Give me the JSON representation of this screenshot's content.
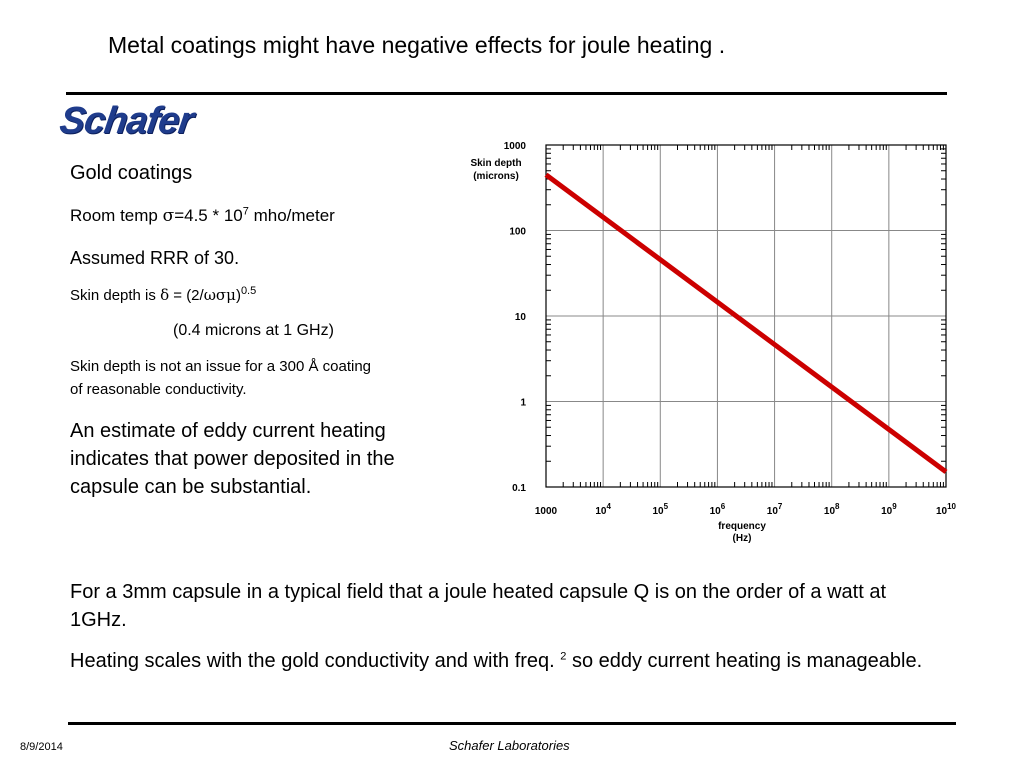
{
  "slide": {
    "title": "Metal coatings might have negative effects for joule heating .",
    "logo_text": "Schafer"
  },
  "bullets": {
    "gold": "Gold coatings",
    "room_temp_prefix": "Room temp ",
    "sigma": "σ",
    "room_temp_eq": "=4.5 * 10",
    "room_temp_exp": "7",
    "room_temp_unit": " mho/meter",
    "rrr": "Assumed RRR of 30.",
    "skin_prefix": "Skin depth is ",
    "delta": "δ",
    "skin_eq": " = (2/",
    "omega_sigma_mu": "ωσμ",
    "skin_close": ")",
    "skin_exp": "0.5",
    "microns": "(0.4 microns at 1 GHz)",
    "issue_line1": "Skin depth is not an issue for a 300 Å coating",
    "issue_line2": "of reasonable conductivity.",
    "eddy_line1": "An estimate of eddy current heating",
    "eddy_line2": "indicates that power deposited in the",
    "eddy_line3": "capsule can be substantial."
  },
  "bottom": {
    "para1": "For a 3mm capsule in a typical field that a joule heated capsule Q is on the order of a watt at 1GHz.",
    "para2_before": "Heating scales with the gold  conductivity and with freq. ",
    "para2_sup": "2",
    "para2_after": " so eddy current heating is manageable."
  },
  "footer": {
    "date": "8/9/2014",
    "center": "Schafer Laboratories"
  },
  "chart_data": {
    "type": "line",
    "xscale": "log",
    "yscale": "log",
    "xlim": [
      1000,
      10000000000
    ],
    "ylim": [
      0.1,
      1000
    ],
    "xlabel": "frequency\n(Hz)",
    "ylabel": "Skin depth\n(microns)",
    "grid": true,
    "x_ticks": [
      {
        "value": 1000,
        "base": "1000",
        "exp": ""
      },
      {
        "value": 10000,
        "base": "10",
        "exp": "4"
      },
      {
        "value": 100000,
        "base": "10",
        "exp": "5"
      },
      {
        "value": 1000000,
        "base": "10",
        "exp": "6"
      },
      {
        "value": 10000000,
        "base": "10",
        "exp": "7"
      },
      {
        "value": 100000000,
        "base": "10",
        "exp": "8"
      },
      {
        "value": 1000000000,
        "base": "10",
        "exp": "9"
      },
      {
        "value": 10000000000,
        "base": "10",
        "exp": "10"
      }
    ],
    "y_ticks": [
      {
        "value": 1000,
        "label": "1000"
      },
      {
        "value": 100,
        "label": "100"
      },
      {
        "value": 10,
        "label": "10"
      },
      {
        "value": 1,
        "label": "1"
      },
      {
        "value": 0.1,
        "label": "0.1"
      }
    ],
    "series": [
      {
        "color": "#cc0000",
        "x": [
          1000,
          10000000000
        ],
        "y": [
          450,
          0.15
        ]
      }
    ]
  }
}
